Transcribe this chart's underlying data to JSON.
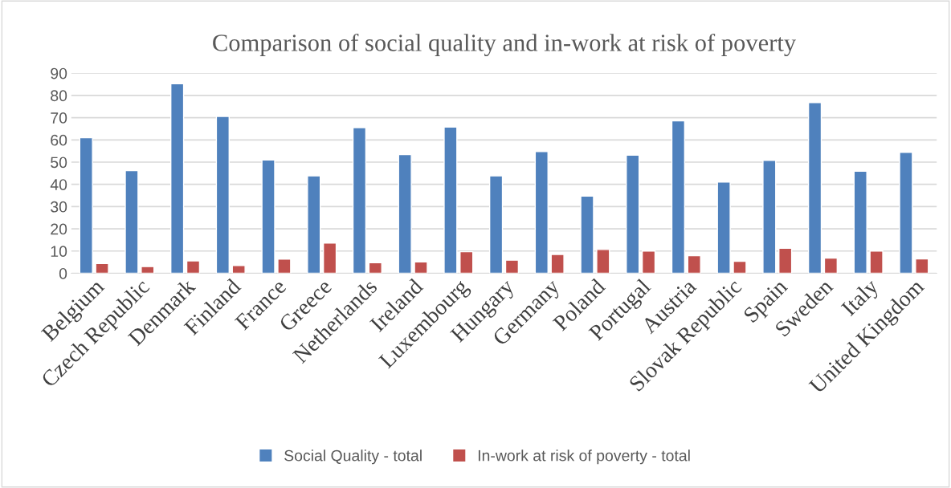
{
  "chart_data": {
    "type": "bar",
    "title": "Comparison of social quality and in-work at risk of poverty",
    "categories": [
      "Belgium",
      "Czech Republic",
      "Denmark",
      "Finland",
      "France",
      "Greece",
      "Netherlands",
      "Ireland",
      "Luxembourg",
      "Hungary",
      "Germany",
      "Poland",
      "Portugal",
      "Austria",
      "Slovak Republic",
      "Spain",
      "Sweden",
      "Italy",
      "United Kingdom"
    ],
    "series": [
      {
        "name": "Social Quality - total",
        "color": "#4f81bd",
        "values": [
          61.0,
          46.2,
          85.3,
          70.6,
          51.0,
          43.8,
          65.5,
          53.4,
          65.8,
          43.8,
          54.8,
          34.7,
          53.1,
          68.6,
          41.0,
          50.8,
          76.8,
          45.9,
          54.4
        ]
      },
      {
        "name": "In-work at risk of poverty - total",
        "color": "#c0504d",
        "values": [
          4.4,
          3.0,
          5.6,
          3.5,
          6.4,
          13.6,
          4.8,
          5.1,
          9.7,
          5.9,
          8.5,
          10.7,
          10.0,
          7.9,
          5.4,
          11.3,
          6.8,
          10.0,
          6.5
        ]
      }
    ],
    "ylim": [
      0,
      90
    ],
    "yticks": [
      0,
      10,
      20,
      30,
      40,
      50,
      60,
      70,
      80,
      90
    ],
    "grid": "y",
    "legend": "bottom"
  }
}
